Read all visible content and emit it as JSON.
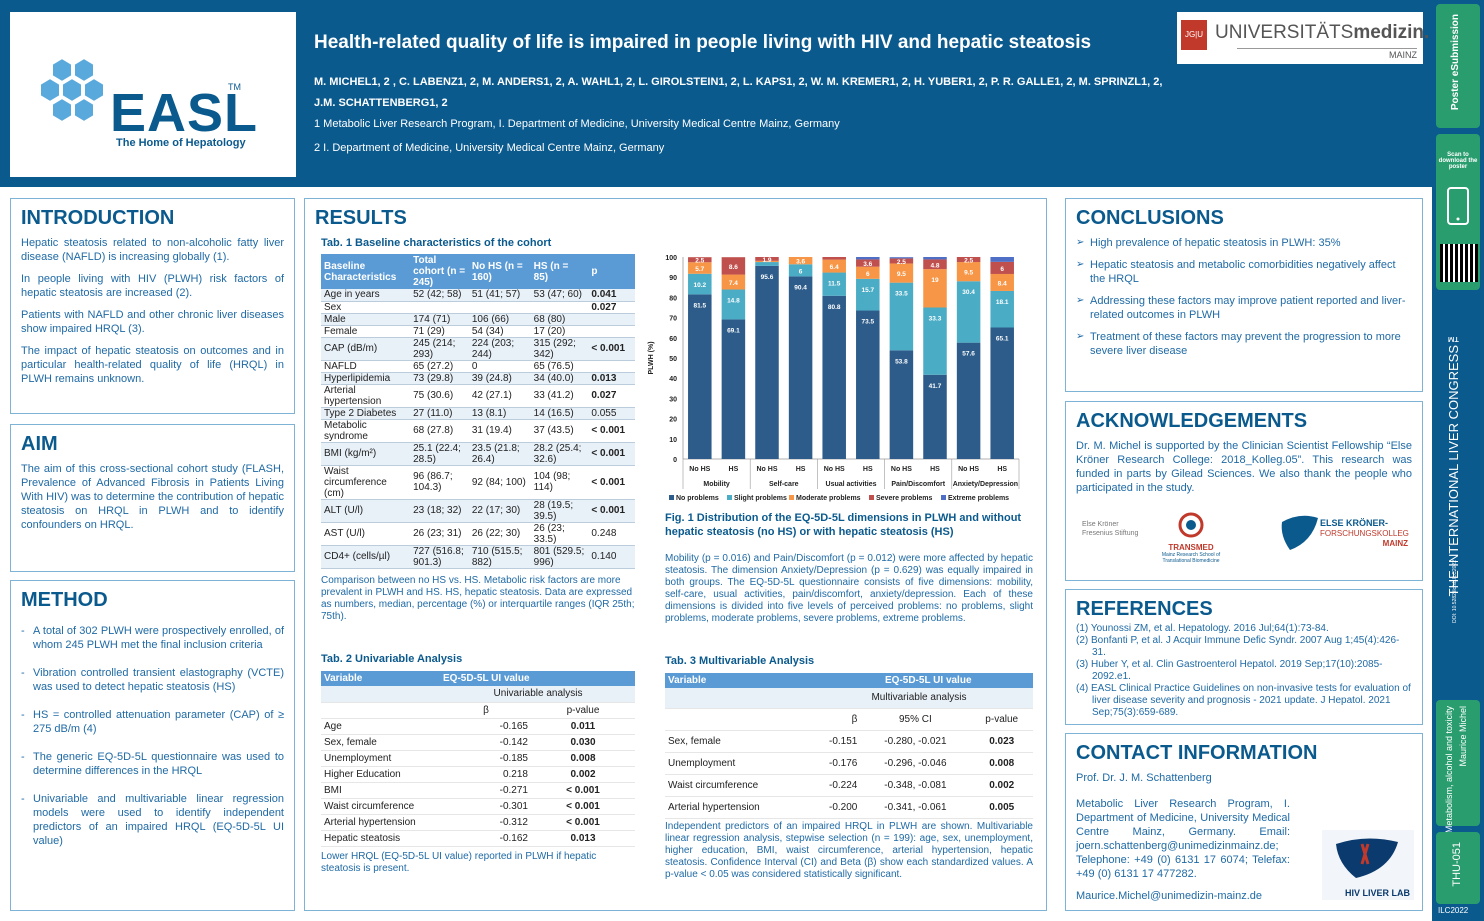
{
  "header": {
    "logo_word": "EASL",
    "logo_tm": "TM",
    "logo_sub": "The Home of Hepatology",
    "title": "Health-related quality of life is impaired in people living with HIV and hepatic steatosis",
    "authors_line1": "M. MICHEL1, 2 , C. LABENZ1, 2, M. ANDERS1, 2, A. WAHL1, 2, L. GIROLSTEIN1, 2, L. KAPS1, 2, W. M. KREMER1, 2, H. YUBER1, 2, P. R. GALLE1, 2, M. SPRINZL1, 2,",
    "authors_line2": "J.M. SCHATTENBERG1, 2",
    "aff1": "1 Metabolic Liver Research Program, I. Department of Medicine, University Medical Centre Mainz, Germany",
    "aff2": "2 I. Department of Medicine, University Medical Centre Mainz, Germany",
    "uni_jgu": "JG|U",
    "uni_name_a": "UNIVERSITÄTS",
    "uni_name_b": "medizin.",
    "uni_city": "MAINZ"
  },
  "intro": {
    "heading": "INTRODUCTION",
    "p1": "Hepatic steatosis related to non-alcoholic fatty liver disease (NAFLD) is increasing globally (1).",
    "p2": "In people living with HIV (PLWH) risk factors of hepatic steatosis are increased (2).",
    "p3": "Patients with NAFLD and other chronic liver diseases show impaired HRQL (3).",
    "p4": "The impact of hepatic steatosis on outcomes and in particular health-related quality of life (HRQL) in PLWH remains unknown."
  },
  "aim": {
    "heading": "AIM",
    "p1": "The aim of this cross-sectional cohort study (FLASH, Prevalence of Advanced Fibrosis in Patients Living With HIV) was to determine the contribution of hepatic steatosis on HRQL in PLWH and to identify confounders on HRQL."
  },
  "method": {
    "heading": "METHOD",
    "items": [
      "A total of 302 PLWH were prospectively enrolled, of whom 245 PLWH met the final inclusion criteria",
      "Vibration controlled transient elastography (VCTE) was used to detect hepatic steatosis (HS)",
      "HS = controlled attenuation parameter (CAP) of ≥ 275 dB/m (4)",
      "The generic EQ-5D-5L questionnaire was used to determine differences in the HRQL",
      "Univariable and multivariable linear regression models were used to identify independent predictors of an impaired HRQL (EQ-5D-5L UI value)"
    ]
  },
  "results": {
    "heading": "RESULTS",
    "tab1_caption": "Tab. 1 Baseline characteristics of the cohort",
    "tab1_headers": [
      "Baseline Characteristics",
      "Total cohort (n = 245)",
      "No HS (n = 160)",
      "HS (n = 85)",
      "p"
    ],
    "tab1_rows": [
      [
        "Age in years",
        "52 (42; 58)",
        "51 (41; 57)",
        "53 (47; 60)",
        "0.041"
      ],
      [
        "Sex",
        "",
        "",
        "",
        "0.027"
      ],
      [
        " Male",
        "174 (71)",
        "106 (66)",
        "68 (80)",
        ""
      ],
      [
        " Female",
        "71 (29)",
        "54 (34)",
        "17 (20)",
        ""
      ],
      [
        "CAP (dB/m)",
        "245 (214; 293)",
        "224 (203; 244)",
        "315 (292; 342)",
        "< 0.001"
      ],
      [
        "NAFLD",
        "65 (27.2)",
        "0",
        "65 (76.5)",
        ""
      ],
      [
        "Hyperlipidemia",
        "73 (29.8)",
        "39 (24.8)",
        "34 (40.0)",
        "0.013"
      ],
      [
        "Arterial hypertension",
        "75 (30.6)",
        "42 (27.1)",
        "33 (41.2)",
        "0.027"
      ],
      [
        "Type 2 Diabetes",
        "27 (11.0)",
        "13 (8.1)",
        "14 (16.5)",
        "0.055"
      ],
      [
        "Metabolic syndrome",
        "68 (27.8)",
        "31 (19.4)",
        "37 (43.5)",
        "< 0.001"
      ],
      [
        "BMI (kg/m²)",
        "25.1 (22.4; 28.5)",
        "23.5 (21.8; 26.4)",
        "28.2 (25.4; 32.6)",
        "< 0.001"
      ],
      [
        "Waist circumference (cm)",
        "96 (86.7; 104.3)",
        "92 (84; 100)",
        "104 (98; 114)",
        "< 0.001"
      ],
      [
        "ALT (U/l)",
        "23 (18; 32)",
        "22 (17; 30)",
        "28 (19.5; 39.5)",
        "< 0.001"
      ],
      [
        "AST (U/l)",
        "26 (23; 31)",
        "26 (22; 30)",
        "26 (23; 33.5)",
        "0.248"
      ],
      [
        "CD4+ (cells/µl)",
        "727 (516.8; 901.3)",
        "710 (515.5; 882)",
        "801 (529.5; 996)",
        "0.140"
      ]
    ],
    "tab1_note": "Comparison between no HS vs. HS. Metabolic risk factors are more prevalent in PLWH and HS. HS, hepatic steatosis. Data are expressed as numbers, median, percentage (%) or interquartile ranges (IQR 25th; 75th).",
    "tab2_caption": "Tab. 2 Univariable Analysis",
    "tab2_head_var": "Variable",
    "tab2_head_ui": "EQ-5D-5L UI value",
    "tab2_sub": "Univariable analysis",
    "tab2_beta": "β",
    "tab2_p": "p-value",
    "tab2_rows": [
      [
        "Age",
        "-0.165",
        "0.011"
      ],
      [
        "Sex, female",
        "-0.142",
        "0.030"
      ],
      [
        "Unemployment",
        "-0.185",
        "0.008"
      ],
      [
        "Higher Education",
        "0.218",
        "0.002"
      ],
      [
        "BMI",
        "-0.271",
        "< 0.001"
      ],
      [
        "Waist circumference",
        "-0.301",
        "< 0.001"
      ],
      [
        "Arterial hypertension",
        "-0.312",
        "< 0.001"
      ],
      [
        "Hepatic steatosis",
        "-0.162",
        "0.013"
      ]
    ],
    "tab2_note": "Lower HRQL (EQ-5D-5L UI value) reported in PLWH if hepatic steatosis is present.",
    "fig_caption": "Fig. 1   Distribution of the EQ-5D-5L dimensions in PLWH and without hepatic steatosis (no HS) or with hepatic steatosis (HS)",
    "fig_text": "Mobility (p = 0.016) and Pain/Discomfort (p = 0.012) were more affected by hepatic steatosis. The dimension Anxiety/Depression (p = 0.629) was equally impaired in both groups. The EQ-5D-5L questionnaire consists of five dimensions: mobility, self-care, usual activities, pain/discomfort, anxiety/depression. Each of these dimensions is divided into five levels of perceived problems: no problems, slight problems, moderate problems, severe problems, extreme problems.",
    "tab3_caption": "Tab. 3 Multivariable Analysis",
    "tab3_head_var": "Variable",
    "tab3_head_ui": "EQ-5D-5L UI value",
    "tab3_sub": "Multivariable analysis",
    "tab3_beta": "β",
    "tab3_ci": "95% CI",
    "tab3_p": "p-value",
    "tab3_rows": [
      [
        "Sex, female",
        "-0.151",
        "-0.280, -0.021",
        "0.023"
      ],
      [
        "Unemployment",
        "-0.176",
        "-0.296, -0.046",
        "0.008"
      ],
      [
        "Waist circumference",
        "-0.224",
        "-0.348, -0.081",
        "0.002"
      ],
      [
        "Arterial hypertension",
        "-0.200",
        "-0.341, -0.061",
        "0.005"
      ]
    ],
    "tab3_note": "Independent predictors of an impaired HRQL in PLWH are shown. Multivariable linear regression analysis, stepwise selection (n = 199): age, sex, unemployment, higher education, BMI, waist circumference, arterial hypertension, hepatic steatosis. Confidence Interval (CI) and Beta (β) show each standardized values. A p-value < 0.05 was considered statistically significant."
  },
  "chart_data": {
    "type": "bar",
    "stacked": true,
    "title": "",
    "ylabel": "PLWH (%)",
    "ylim": [
      0,
      100
    ],
    "yticks": [
      0,
      10,
      20,
      30,
      40,
      50,
      60,
      70,
      80,
      90,
      100
    ],
    "categories": [
      "No HS",
      "HS",
      "No HS",
      "HS",
      "No HS",
      "HS",
      "No HS",
      "HS",
      "No HS",
      "HS"
    ],
    "groups": [
      "Mobility",
      "Self-care",
      "Usual activities",
      "Pain/Discomfort",
      "Anxiety/Depression"
    ],
    "series": [
      {
        "name": "No problems",
        "color": "#2e5c8a",
        "values": [
          81.5,
          69.1,
          95.6,
          90.4,
          80.8,
          73.5,
          53.8,
          41.7,
          57.6,
          65.1
        ]
      },
      {
        "name": "Slight problems",
        "color": "#4bacc6",
        "values": [
          10.2,
          14.8,
          1.9,
          6,
          11.5,
          15.7,
          33.5,
          33.3,
          30.4,
          18.1
        ]
      },
      {
        "name": "Moderate problems",
        "color": "#f79646",
        "values": [
          5.7,
          7.4,
          0.6,
          3.6,
          6.4,
          6,
          9.5,
          19,
          9.5,
          8.4
        ]
      },
      {
        "name": "Severe problems",
        "color": "#c0504d",
        "values": [
          2.5,
          8.6,
          1.9,
          0,
          1.3,
          3.6,
          2.5,
          4.8,
          2.5,
          6
        ]
      },
      {
        "name": "Extreme problems",
        "color": "#4f6fc6",
        "values": [
          0,
          0,
          0,
          0,
          0,
          1.2,
          0.6,
          1.2,
          0,
          2.4
        ]
      }
    ],
    "value_labels": [
      [
        "81.5",
        "69.1",
        "95.6",
        "90.4",
        "80.8",
        "73.5",
        "53.8",
        "41.7",
        "57.6",
        "65.1"
      ],
      [
        "10.2",
        "14.8",
        "",
        "6",
        "11.5",
        "15.7",
        "33.5",
        "33.3",
        "30.4",
        "18.1"
      ],
      [
        "5.7",
        "7.4",
        "",
        "3.6",
        "6.4",
        "6",
        "9.5",
        "19",
        "9.5",
        "8.4"
      ],
      [
        "2.5",
        "8.6",
        "1.9",
        "",
        "",
        "3.6",
        "2.5",
        "4.8",
        "2.5",
        "6"
      ]
    ],
    "legend_position": "bottom",
    "grid": false
  },
  "conclusions": {
    "heading": "CONCLUSIONS",
    "items": [
      "High prevalence of hepatic steatosis in PLWH: 35%",
      "Hepatic steatosis and metabolic comorbidities negatively affect the HRQL",
      "Addressing these factors may improve patient reported and liver-related outcomes in PLWH",
      "Treatment of these factors may prevent the progression to more severe liver disease"
    ]
  },
  "ack": {
    "heading": "ACKNOWLEDGEMENTS",
    "text": "Dr. M. Michel is supported by the Clinician Scientist Fellowship “Else Kröner Research College: 2018_Kolleg.05”. This research was funded in parts by Gilead Sciences. We also thank the people who participated in the study.",
    "logo1": "Else Kröner Fresenius Stiftung",
    "logo2": "TRANSMED",
    "logo2_sub": "Mainz Research School of Translational Biomedicine",
    "logo3a": "ELSE KRÖNER-",
    "logo3b": "FORSCHUNGSKOLLEG",
    "logo3c": "MAINZ"
  },
  "refs": {
    "heading": "REFERENCES",
    "items": [
      "(1) Younossi ZM, et al. Hepatology. 2016 Jul;64(1):73-84.",
      "(2) Bonfanti P, et al. J Acquir Immune Defic Syndr. 2007 Aug 1;45(4):426-31.",
      "(3) Huber Y, et al. Clin Gastroenterol Hepatol. 2019 Sep;17(10):2085-2092.e1.",
      "(4) EASL Clinical Practice Guidelines on non-invasive tests for evaluation of liver disease severity and prognosis - 2021 update. J Hepatol. 2021 Sep;75(3):659-689."
    ]
  },
  "contact": {
    "heading": "CONTACT INFORMATION",
    "name": "Prof. Dr. J. M. Schattenberg",
    "address": "Metabolic Liver Research Program, I. Department of Medicine, University Medical Centre Mainz, Germany. Email: joern.schattenberg@unimedizinmainz.de; Telephone: +49 (0) 6131 17 6074; Telefax: +49 (0) 6131 17 477282.",
    "email2": "Maurice.Michel@unimedizin-mainz.de",
    "lab": "HIV LIVER LAB"
  },
  "sidebar": {
    "ps_top": "Poster eSubmission",
    "scan": "Scan to download the poster",
    "congress": "THE INTERNATIONAL LIVER CONGRESS™",
    "doi": "DOI: 10.5282/ilc/sb.ILC2022",
    "topic": "Metabolism, alcohol and toxicity",
    "author": "Maurice Michel",
    "code": "THU-051",
    "year": "ILC2022"
  }
}
